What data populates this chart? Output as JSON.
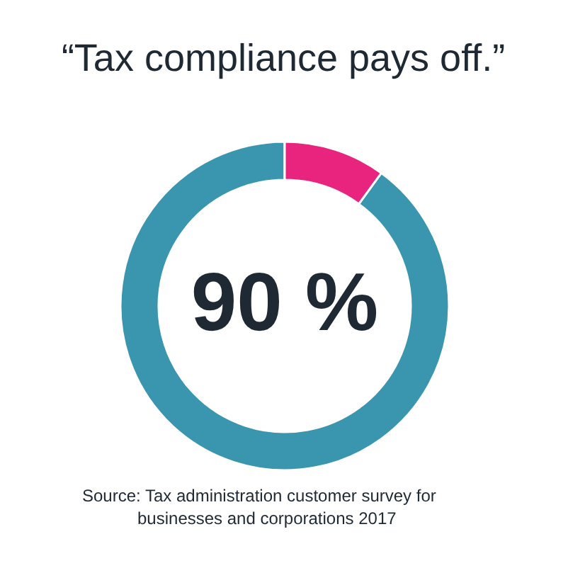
{
  "chart_data": {
    "type": "donut",
    "title": "“Tax compliance pays off.”",
    "categories": [
      null,
      null
    ],
    "values": [
      90,
      10
    ],
    "colors": [
      "#3a96af",
      "#e8247f"
    ],
    "value_labels": [
      "90 %",
      null
    ],
    "annotations": [
      "Source: Tax administration customer survey for businesses and corporations 2017"
    ]
  }
}
